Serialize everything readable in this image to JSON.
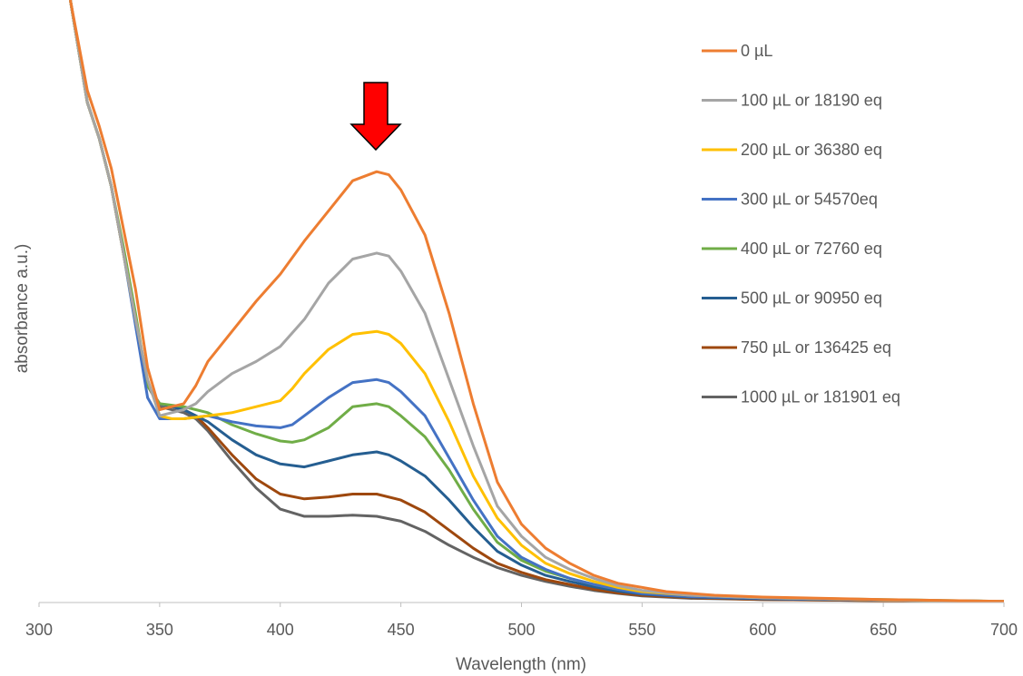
{
  "chart_data": {
    "type": "line",
    "title": "",
    "xlabel": "Wavelength (nm)",
    "ylabel": "absorbance a.u.)",
    "xlim": [
      300,
      700
    ],
    "ylim": [
      0,
      1.0
    ],
    "x_ticks": [
      "300",
      "350",
      "400",
      "450",
      "500",
      "550",
      "600",
      "650",
      "700"
    ],
    "grid": false,
    "legend_position": "right",
    "annotation": "red downward arrow above the 440 nm peak",
    "series": [
      {
        "name": "0 µL",
        "color": "#ED7D31",
        "points": [
          [
            313,
            1.0
          ],
          [
            320,
            0.85
          ],
          [
            325,
            0.79
          ],
          [
            330,
            0.72
          ],
          [
            335,
            0.62
          ],
          [
            340,
            0.52
          ],
          [
            345,
            0.39
          ],
          [
            350,
            0.32
          ],
          [
            355,
            0.325
          ],
          [
            360,
            0.33
          ],
          [
            365,
            0.36
          ],
          [
            370,
            0.4
          ],
          [
            380,
            0.45
          ],
          [
            390,
            0.5
          ],
          [
            400,
            0.545
          ],
          [
            410,
            0.6
          ],
          [
            420,
            0.65
          ],
          [
            430,
            0.7
          ],
          [
            440,
            0.715
          ],
          [
            445,
            0.71
          ],
          [
            450,
            0.685
          ],
          [
            460,
            0.61
          ],
          [
            470,
            0.48
          ],
          [
            480,
            0.33
          ],
          [
            490,
            0.2
          ],
          [
            500,
            0.13
          ],
          [
            510,
            0.09
          ],
          [
            520,
            0.065
          ],
          [
            530,
            0.045
          ],
          [
            540,
            0.032
          ],
          [
            550,
            0.025
          ],
          [
            560,
            0.018
          ],
          [
            580,
            0.012
          ],
          [
            600,
            0.009
          ],
          [
            650,
            0.005
          ],
          [
            700,
            0.002
          ]
        ]
      },
      {
        "name": "100 µL or 18190 eq",
        "color": "#A5A5A5",
        "points": [
          [
            313,
            1.0
          ],
          [
            320,
            0.83
          ],
          [
            325,
            0.77
          ],
          [
            330,
            0.69
          ],
          [
            335,
            0.58
          ],
          [
            340,
            0.47
          ],
          [
            345,
            0.37
          ],
          [
            350,
            0.31
          ],
          [
            355,
            0.315
          ],
          [
            360,
            0.32
          ],
          [
            365,
            0.33
          ],
          [
            370,
            0.35
          ],
          [
            380,
            0.38
          ],
          [
            390,
            0.4
          ],
          [
            400,
            0.425
          ],
          [
            410,
            0.47
          ],
          [
            420,
            0.53
          ],
          [
            430,
            0.57
          ],
          [
            440,
            0.58
          ],
          [
            445,
            0.575
          ],
          [
            450,
            0.55
          ],
          [
            460,
            0.48
          ],
          [
            470,
            0.37
          ],
          [
            480,
            0.26
          ],
          [
            490,
            0.16
          ],
          [
            500,
            0.11
          ],
          [
            510,
            0.075
          ],
          [
            520,
            0.055
          ],
          [
            530,
            0.04
          ],
          [
            540,
            0.028
          ],
          [
            550,
            0.02
          ],
          [
            570,
            0.012
          ],
          [
            600,
            0.008
          ],
          [
            650,
            0.004
          ],
          [
            700,
            0.002
          ]
        ]
      },
      {
        "name": "200 µL or 36380 eq",
        "color": "#FFC000",
        "points": [
          [
            313,
            1.0
          ],
          [
            320,
            0.83
          ],
          [
            325,
            0.77
          ],
          [
            330,
            0.69
          ],
          [
            335,
            0.58
          ],
          [
            340,
            0.47
          ],
          [
            345,
            0.37
          ],
          [
            350,
            0.31
          ],
          [
            355,
            0.305
          ],
          [
            360,
            0.305
          ],
          [
            370,
            0.31
          ],
          [
            380,
            0.315
          ],
          [
            390,
            0.325
          ],
          [
            400,
            0.335
          ],
          [
            405,
            0.355
          ],
          [
            410,
            0.38
          ],
          [
            420,
            0.42
          ],
          [
            430,
            0.445
          ],
          [
            440,
            0.45
          ],
          [
            445,
            0.445
          ],
          [
            450,
            0.43
          ],
          [
            460,
            0.38
          ],
          [
            470,
            0.3
          ],
          [
            480,
            0.21
          ],
          [
            490,
            0.14
          ],
          [
            500,
            0.095
          ],
          [
            510,
            0.065
          ],
          [
            520,
            0.048
          ],
          [
            530,
            0.035
          ],
          [
            540,
            0.025
          ],
          [
            550,
            0.018
          ],
          [
            570,
            0.012
          ],
          [
            600,
            0.008
          ],
          [
            650,
            0.004
          ],
          [
            700,
            0.002
          ]
        ]
      },
      {
        "name": "300 µL or 54570eq",
        "color": "#4472C4",
        "points": [
          [
            313,
            1.0
          ],
          [
            320,
            0.83
          ],
          [
            325,
            0.77
          ],
          [
            330,
            0.69
          ],
          [
            335,
            0.58
          ],
          [
            340,
            0.46
          ],
          [
            345,
            0.34
          ],
          [
            350,
            0.305
          ],
          [
            360,
            0.305
          ],
          [
            370,
            0.31
          ],
          [
            380,
            0.3
          ],
          [
            390,
            0.293
          ],
          [
            400,
            0.29
          ],
          [
            405,
            0.295
          ],
          [
            410,
            0.31
          ],
          [
            420,
            0.34
          ],
          [
            430,
            0.365
          ],
          [
            440,
            0.37
          ],
          [
            445,
            0.365
          ],
          [
            450,
            0.35
          ],
          [
            460,
            0.31
          ],
          [
            470,
            0.24
          ],
          [
            480,
            0.17
          ],
          [
            490,
            0.11
          ],
          [
            500,
            0.075
          ],
          [
            510,
            0.055
          ],
          [
            520,
            0.04
          ],
          [
            530,
            0.03
          ],
          [
            540,
            0.022
          ],
          [
            550,
            0.015
          ],
          [
            570,
            0.01
          ],
          [
            600,
            0.007
          ],
          [
            650,
            0.004
          ],
          [
            700,
            0.002
          ]
        ]
      },
      {
        "name": "400 µL or 72760 eq",
        "color": "#70AD47",
        "points": [
          [
            313,
            1.0
          ],
          [
            320,
            0.83
          ],
          [
            325,
            0.77
          ],
          [
            330,
            0.69
          ],
          [
            335,
            0.59
          ],
          [
            340,
            0.48
          ],
          [
            345,
            0.36
          ],
          [
            350,
            0.33
          ],
          [
            360,
            0.325
          ],
          [
            365,
            0.32
          ],
          [
            370,
            0.315
          ],
          [
            380,
            0.295
          ],
          [
            390,
            0.28
          ],
          [
            400,
            0.268
          ],
          [
            405,
            0.266
          ],
          [
            410,
            0.27
          ],
          [
            420,
            0.29
          ],
          [
            430,
            0.325
          ],
          [
            440,
            0.33
          ],
          [
            445,
            0.325
          ],
          [
            450,
            0.31
          ],
          [
            460,
            0.275
          ],
          [
            470,
            0.22
          ],
          [
            480,
            0.155
          ],
          [
            490,
            0.1
          ],
          [
            500,
            0.07
          ],
          [
            510,
            0.052
          ],
          [
            520,
            0.04
          ],
          [
            530,
            0.03
          ],
          [
            540,
            0.022
          ],
          [
            550,
            0.016
          ],
          [
            570,
            0.011
          ],
          [
            600,
            0.008
          ],
          [
            650,
            0.005
          ],
          [
            700,
            0.002
          ]
        ]
      },
      {
        "name": "500 µL or 90950 eq",
        "color": "#255E91",
        "points": [
          [
            313,
            1.0
          ],
          [
            320,
            0.83
          ],
          [
            325,
            0.77
          ],
          [
            330,
            0.69
          ],
          [
            335,
            0.58
          ],
          [
            340,
            0.47
          ],
          [
            345,
            0.36
          ],
          [
            350,
            0.33
          ],
          [
            360,
            0.32
          ],
          [
            365,
            0.31
          ],
          [
            370,
            0.3
          ],
          [
            380,
            0.27
          ],
          [
            390,
            0.245
          ],
          [
            400,
            0.23
          ],
          [
            410,
            0.225
          ],
          [
            420,
            0.235
          ],
          [
            430,
            0.245
          ],
          [
            440,
            0.25
          ],
          [
            445,
            0.245
          ],
          [
            450,
            0.235
          ],
          [
            460,
            0.21
          ],
          [
            470,
            0.17
          ],
          [
            480,
            0.125
          ],
          [
            490,
            0.085
          ],
          [
            500,
            0.062
          ],
          [
            510,
            0.045
          ],
          [
            520,
            0.035
          ],
          [
            530,
            0.026
          ],
          [
            540,
            0.019
          ],
          [
            550,
            0.014
          ],
          [
            570,
            0.009
          ],
          [
            600,
            0.006
          ],
          [
            650,
            0.004
          ],
          [
            700,
            0.002
          ]
        ]
      },
      {
        "name": "750 µL or 136425 eq",
        "color": "#9E480E",
        "points": [
          [
            313,
            1.0
          ],
          [
            320,
            0.83
          ],
          [
            325,
            0.77
          ],
          [
            330,
            0.69
          ],
          [
            335,
            0.58
          ],
          [
            340,
            0.47
          ],
          [
            345,
            0.36
          ],
          [
            350,
            0.33
          ],
          [
            360,
            0.32
          ],
          [
            365,
            0.31
          ],
          [
            370,
            0.29
          ],
          [
            380,
            0.245
          ],
          [
            390,
            0.205
          ],
          [
            400,
            0.18
          ],
          [
            410,
            0.172
          ],
          [
            420,
            0.175
          ],
          [
            430,
            0.18
          ],
          [
            440,
            0.18
          ],
          [
            450,
            0.17
          ],
          [
            460,
            0.15
          ],
          [
            470,
            0.12
          ],
          [
            480,
            0.09
          ],
          [
            490,
            0.065
          ],
          [
            500,
            0.05
          ],
          [
            510,
            0.038
          ],
          [
            520,
            0.03
          ],
          [
            530,
            0.022
          ],
          [
            540,
            0.016
          ],
          [
            550,
            0.012
          ],
          [
            570,
            0.008
          ],
          [
            600,
            0.005
          ],
          [
            650,
            0.003
          ],
          [
            700,
            0.002
          ]
        ]
      },
      {
        "name": "1000 µL or 181901 eq",
        "color": "#636363",
        "points": [
          [
            313,
            1.0
          ],
          [
            320,
            0.83
          ],
          [
            325,
            0.77
          ],
          [
            330,
            0.69
          ],
          [
            335,
            0.58
          ],
          [
            340,
            0.47
          ],
          [
            345,
            0.36
          ],
          [
            350,
            0.325
          ],
          [
            360,
            0.315
          ],
          [
            365,
            0.305
          ],
          [
            370,
            0.285
          ],
          [
            380,
            0.235
          ],
          [
            390,
            0.19
          ],
          [
            400,
            0.155
          ],
          [
            410,
            0.143
          ],
          [
            420,
            0.143
          ],
          [
            430,
            0.145
          ],
          [
            440,
            0.143
          ],
          [
            450,
            0.135
          ],
          [
            460,
            0.118
          ],
          [
            470,
            0.095
          ],
          [
            480,
            0.075
          ],
          [
            490,
            0.058
          ],
          [
            500,
            0.045
          ],
          [
            510,
            0.035
          ],
          [
            520,
            0.027
          ],
          [
            530,
            0.02
          ],
          [
            540,
            0.015
          ],
          [
            550,
            0.011
          ],
          [
            570,
            0.007
          ],
          [
            600,
            0.005
          ],
          [
            650,
            0.003
          ],
          [
            700,
            0.002
          ]
        ]
      }
    ]
  }
}
